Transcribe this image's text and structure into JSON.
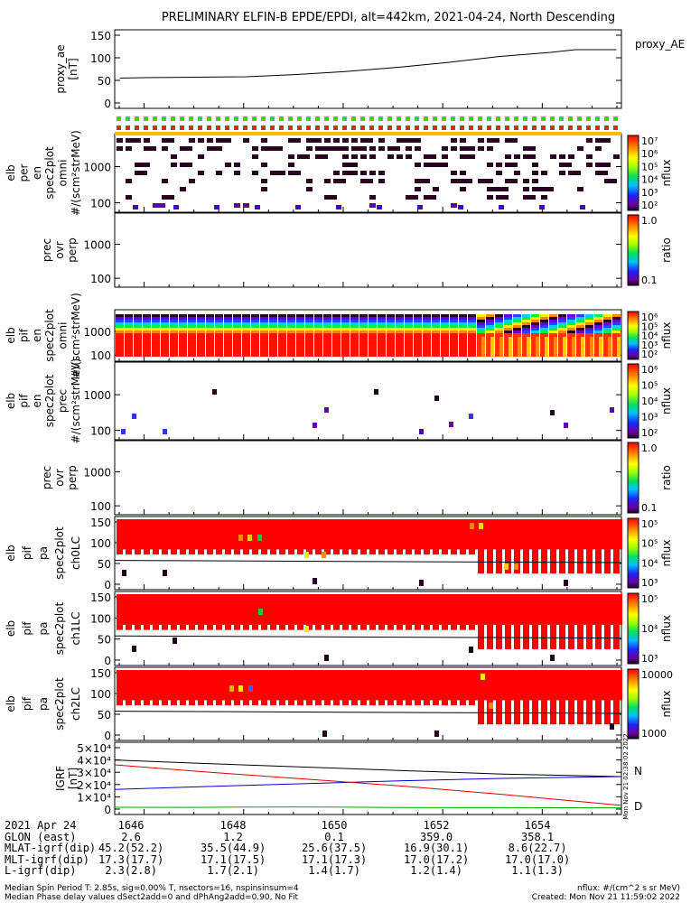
{
  "title": "PRELIMINARY ELFIN-B EPDE/EPDI, alt=442km, 2021-04-24, North Descending",
  "x_ticks": [
    "1646",
    "1648",
    "1650",
    "1652",
    "1654"
  ],
  "panels": [
    {
      "ylabel_lines": [
        "proxy_ae",
        "[nT]"
      ],
      "yticks": [
        "150",
        "100",
        "50",
        "0"
      ],
      "right_label": "proxy_AE"
    },
    {
      "ylabel_lines": [
        "elb",
        "per",
        "en",
        "spec2plot",
        "omni",
        "#/(scm²strMeV)"
      ],
      "yticks": [
        "1000",
        "100"
      ],
      "cbar_ticks": [
        "10⁷",
        "10⁶",
        "10⁵",
        "10⁴",
        "10³",
        "10²"
      ],
      "cbar_title": "nflux"
    },
    {
      "ylabel_lines": [
        "prec",
        "ovr",
        "perp"
      ],
      "yticks": [
        "1000",
        "100"
      ],
      "cbar_ticks": [
        "1.0",
        "0.1"
      ],
      "cbar_title": "ratio"
    },
    {
      "ylabel_lines": [
        "elb",
        "pif",
        "en",
        "spec2plot",
        "omni",
        "#/(scm²strMeV)"
      ],
      "yticks": [
        "1000",
        "100"
      ],
      "cbar_ticks": [
        "10⁶",
        "10⁵",
        "10⁴",
        "10³",
        "10²"
      ],
      "cbar_title": "nflux"
    },
    {
      "ylabel_lines": [
        "elb",
        "pif",
        "en",
        "spec2plot",
        "prec",
        "#/(scm²strMeV)"
      ],
      "yticks": [
        "1000",
        "100"
      ],
      "cbar_ticks": [
        "10⁶",
        "10⁵",
        "10⁴",
        "10³",
        "10²"
      ],
      "cbar_title": "nflux"
    },
    {
      "ylabel_lines": [
        "prec",
        "ovr",
        "perp"
      ],
      "yticks": [
        "1000",
        "100"
      ],
      "cbar_ticks": [
        "1.0",
        "0.1"
      ],
      "cbar_title": "ratio"
    },
    {
      "ylabel_lines": [
        "elb",
        "pif",
        "pa",
        "spec2plot",
        "ch0LC"
      ],
      "yticks": [
        "150",
        "100",
        "50",
        "0"
      ],
      "cbar_ticks": [
        "10⁵",
        "10⁵",
        "10⁴",
        "10³"
      ],
      "cbar_title": "nflux"
    },
    {
      "ylabel_lines": [
        "elb",
        "pif",
        "pa",
        "spec2plot",
        "ch1LC"
      ],
      "yticks": [
        "150",
        "100",
        "50",
        "0"
      ],
      "cbar_ticks": [
        "10⁵",
        "10⁴",
        "10³"
      ],
      "cbar_title": "nflux"
    },
    {
      "ylabel_lines": [
        "elb",
        "pif",
        "pa",
        "spec2plot",
        "ch2LC"
      ],
      "yticks": [
        "150",
        "100",
        "50",
        "0"
      ],
      "cbar_ticks": [
        "10000",
        "1000"
      ],
      "cbar_title": "nflux"
    },
    {
      "ylabel_lines": [
        "IGRF",
        "[nT]"
      ],
      "yticks": [
        "5×10⁴",
        "4×10⁴",
        "3×10⁴",
        "2×10⁴",
        "1×10⁴",
        "0"
      ],
      "right_labels": [
        "N",
        "D"
      ],
      "side_stamp": "Mon Nov 21 02:38:02 2022"
    }
  ],
  "annotation": {
    "rows": [
      {
        "label": "2021 Apr 24",
        "values": [
          "1646",
          "1648",
          "1650",
          "1652",
          "1654"
        ]
      },
      {
        "label": "GLON (east)",
        "values": [
          "2.6",
          "1.2",
          "0.1",
          "359.0",
          "358.1"
        ]
      },
      {
        "label": "MLAT-igrf(dip)",
        "values": [
          "45.2(52.2)",
          "35.5(44.9)",
          "25.6(37.5)",
          "16.9(30.1)",
          "8.6(22.7)"
        ]
      },
      {
        "label": "MLT-igrf(dip)",
        "values": [
          "17.3(17.7)",
          "17.1(17.5)",
          "17.1(17.3)",
          "17.0(17.2)",
          "17.0(17.0)"
        ]
      },
      {
        "label": "L-igrf(dip)",
        "values": [
          "2.3(2.8)",
          "1.7(2.1)",
          "1.4(1.7)",
          "1.2(1.4)",
          "1.1(1.3)"
        ]
      }
    ]
  },
  "footer": {
    "left1": "Median Spin Period T: 2.85s, sig=0.00% T, nsectors=16, nspinsinsum=4",
    "left2": "Median Phase delay values dSect2add=0 and dPhAng2add=0.90, No Fit",
    "right1": "nflux: #/(cm^2 s sr MeV)",
    "right2": "Created: Mon Nov 21 11:59:02 2022"
  },
  "colors": {
    "red": "#ff0000",
    "blue": "#0000cc",
    "green": "#00aa00",
    "orange": "#ff8800",
    "dark": "#330022"
  },
  "chart_data": [
    {
      "type": "line",
      "name": "proxy_AE",
      "x": [
        1645.5,
        1646,
        1647,
        1648,
        1649,
        1650,
        1651,
        1652,
        1653,
        1654,
        1654.5,
        1655.3
      ],
      "y": [
        55,
        56,
        57,
        58,
        63,
        70,
        79,
        90,
        103,
        112,
        118,
        118
      ],
      "ylim": [
        0,
        150
      ],
      "xlim": [
        1645.4,
        1655.4
      ]
    },
    {
      "type": "line",
      "name": "IGRF",
      "x": [
        1645.5,
        1647,
        1649,
        1651,
        1653,
        1655.3
      ],
      "series": [
        {
          "name": "total",
          "values": [
            40000,
            37500,
            34500,
            31500,
            28500,
            26500
          ]
        },
        {
          "name": "N",
          "values": [
            16000,
            18000,
            20500,
            23000,
            25000,
            26500
          ]
        },
        {
          "name": "D",
          "values": [
            36000,
            31000,
            25000,
            19000,
            12000,
            3000
          ]
        },
        {
          "name": "Z",
          "values": [
            1500,
            1400,
            1800,
            1300,
            1200,
            1000
          ]
        }
      ],
      "ylim": [
        0,
        50000
      ]
    },
    {
      "type": "heatmap",
      "name": "elb per en omni",
      "yscale": "log",
      "ylim": [
        60,
        8000
      ],
      "colorbar": "nflux 10^2-10^7"
    },
    {
      "type": "heatmap",
      "name": "elb pif en omni",
      "yscale": "log",
      "ylim": [
        60,
        8000
      ],
      "colorbar": "nflux 10^2-10^6"
    },
    {
      "type": "heatmap",
      "name": "elb pif en prec",
      "yscale": "log",
      "ylim": [
        60,
        8000
      ],
      "colorbar": "nflux 10^2-10^6"
    },
    {
      "type": "heatmap",
      "name": "elb pif pa ch0LC",
      "ylim": [
        0,
        180
      ],
      "colorbar": "nflux 10^3-10^5"
    },
    {
      "type": "heatmap",
      "name": "elb pif pa ch1LC",
      "ylim": [
        0,
        180
      ],
      "colorbar": "nflux 10^3-10^5"
    },
    {
      "type": "heatmap",
      "name": "elb pif pa ch2LC",
      "ylim": [
        0,
        180
      ],
      "colorbar": "nflux 10^3-10^4"
    }
  ]
}
